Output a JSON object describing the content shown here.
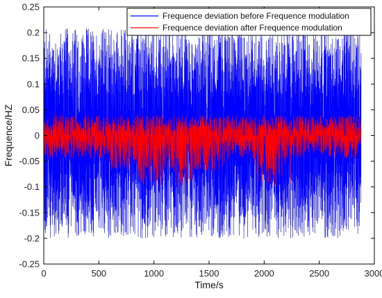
{
  "chart_data": {
    "type": "line",
    "title": "",
    "xlabel": "Time/s",
    "ylabel": "Frequence/HZ",
    "xlim": [
      0,
      3000
    ],
    "ylim": [
      -0.25,
      0.25
    ],
    "xticks": [
      0,
      500,
      1000,
      1500,
      2000,
      2500,
      3000
    ],
    "yticks": [
      -0.25,
      -0.2,
      -0.15,
      -0.1,
      -0.05,
      0,
      0.05,
      0.1,
      0.15,
      0.2,
      0.25
    ],
    "xtick_labels": [
      "0",
      "500",
      "1000",
      "1500",
      "2000",
      "2500",
      "3000"
    ],
    "ytick_labels": [
      "-0.25",
      "-0.2",
      "-0.15",
      "-0.1",
      "-0.05",
      "0",
      "0.05",
      "0.1",
      "0.15",
      "0.2",
      "0.25"
    ],
    "grid": false,
    "legend_position": "top-right",
    "series": [
      {
        "name": "Frequence deviation before Frequence modulation",
        "color": "#0000ff",
        "x_range": [
          0,
          2880
        ],
        "envelope": [
          -0.2,
          0.21
        ],
        "description_values": {
          "max": 0.21,
          "min": -0.2
        }
      },
      {
        "name": "Frequence deviation after Frequence modulation",
        "color": "#ff0000",
        "x_range": [
          0,
          2880
        ],
        "envelope": [
          -0.1,
          0.04
        ],
        "description_values": {
          "max": 0.04,
          "min": -0.1
        }
      }
    ]
  }
}
